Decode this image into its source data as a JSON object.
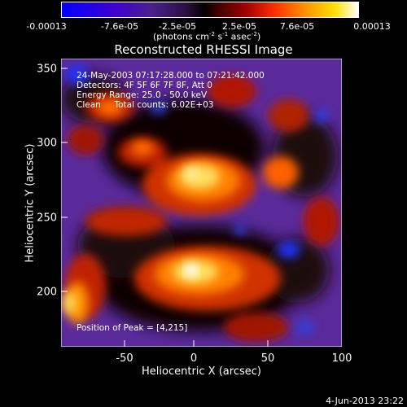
{
  "colorbar": {
    "ticks": [
      "-0.00013",
      "-7.6e-05",
      "-2.5e-05",
      "2.5e-05",
      "7.6e-05",
      "0.00013"
    ],
    "units": "(photons cm",
    "units_sup1": "-2",
    "units_mid": " s",
    "units_sup2": "-1",
    "units_end": " asec",
    "units_sup3": "-2",
    "units_close": ")"
  },
  "title": "Reconstructed RHESSI Image",
  "info": {
    "time": "24-May-2003 07:17:28.000 to 07:21:42.000",
    "detectors": "Detectors: 4F 5F 6F 7F 8F, Att 0",
    "energy": "Energy Range: 25.0 - 50.0 keV",
    "clean": "Clean     Total counts: 6.02E+03",
    "peak": "Position of Peak = [4,215]"
  },
  "axes": {
    "xlabel": "Heliocentric X (arcsec)",
    "ylabel": "Heliocentric Y (arcsec)",
    "xticks": [
      "-50",
      "0",
      "50",
      "100"
    ],
    "yticks": [
      "350",
      "300",
      "250",
      "200"
    ],
    "xrange": [
      -90,
      100
    ],
    "yrange": [
      160,
      355
    ]
  },
  "timestamp": "4-Jun-2013 23:22",
  "colors": {
    "background": "#000000",
    "text": "#ffffff"
  }
}
